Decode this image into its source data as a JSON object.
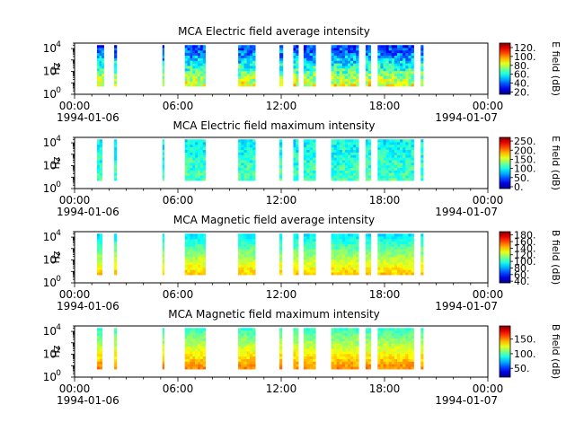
{
  "chart_data": [
    {
      "type": "heatmap",
      "title": "MCA  Electric field average intensity",
      "ylabel": "Hz",
      "colorbar_label": "E field (dB)",
      "colorbar_ticks": [
        20,
        40,
        60,
        80,
        100,
        120
      ],
      "colorbar_tick_labels": [
        "20.",
        "40.",
        "60.",
        "80.",
        "100.",
        "120."
      ],
      "colorbar_range": [
        15,
        130
      ],
      "y_scale": "log",
      "y_range": [
        1,
        30000
      ],
      "y_ticks": [
        {
          "base": "10",
          "exp": "0"
        },
        {
          "base": "10",
          "exp": "2"
        },
        {
          "base": "10",
          "exp": "4"
        }
      ],
      "x_range": [
        0,
        24
      ],
      "x_ticks": [
        "00:00",
        "06:00",
        "12:00",
        "18:00",
        "00:00"
      ],
      "x_date_labels": [
        "1994-01-06",
        "1994-01-07"
      ],
      "freq_range": [
        5,
        20000
      ],
      "segments": [
        [
          1.3,
          1.7
        ],
        [
          2.3,
          2.45
        ],
        [
          5.1,
          5.2
        ],
        [
          6.4,
          7.6
        ],
        [
          9.5,
          10.5
        ],
        [
          11.9,
          12.1
        ],
        [
          12.7,
          13.0
        ],
        [
          13.3,
          14.0
        ],
        [
          14.9,
          16.5
        ],
        [
          16.9,
          17.2
        ],
        [
          17.6,
          19.7
        ],
        [
          20.1,
          20.25
        ]
      ],
      "level_low": 85,
      "level_high": 35,
      "noise": 14
    },
    {
      "type": "heatmap",
      "title": "MCA  Electric field maximum intensity",
      "ylabel": "Hz",
      "colorbar_label": "E field (dB)",
      "colorbar_ticks": [
        0,
        50,
        100,
        150,
        200,
        250
      ],
      "colorbar_tick_labels": [
        "0.",
        "50.",
        "100.",
        "150.",
        "200.",
        "250."
      ],
      "colorbar_range": [
        -10,
        270
      ],
      "y_scale": "log",
      "y_range": [
        1,
        30000
      ],
      "y_ticks": [
        {
          "base": "10",
          "exp": "0"
        },
        {
          "base": "10",
          "exp": "2"
        },
        {
          "base": "10",
          "exp": "4"
        }
      ],
      "x_range": [
        0,
        24
      ],
      "x_ticks": [
        "00:00",
        "06:00",
        "12:00",
        "18:00",
        "00:00"
      ],
      "x_date_labels": [
        "1994-01-06",
        "1994-01-07"
      ],
      "freq_range": [
        5,
        20000
      ],
      "segments": [
        [
          1.3,
          1.6
        ],
        [
          2.3,
          2.45
        ],
        [
          5.1,
          5.2
        ],
        [
          6.4,
          7.6
        ],
        [
          9.5,
          10.5
        ],
        [
          11.9,
          12.05
        ],
        [
          12.7,
          13.0
        ],
        [
          13.3,
          14.0
        ],
        [
          14.9,
          16.5
        ],
        [
          16.9,
          17.2
        ],
        [
          17.6,
          19.7
        ],
        [
          20.1,
          20.25
        ]
      ],
      "level_low": 115,
      "level_high": 95,
      "noise": 22
    },
    {
      "type": "heatmap",
      "title": "MCA  Magnetic field average intensity",
      "ylabel": "Hz",
      "colorbar_label": "B field (dB)",
      "colorbar_ticks": [
        40,
        60,
        80,
        100,
        120,
        140,
        160,
        180
      ],
      "colorbar_tick_labels": [
        "40.",
        "60.",
        "80.",
        "100.",
        "120.",
        "140.",
        "160.",
        "180."
      ],
      "colorbar_range": [
        35,
        190
      ],
      "y_scale": "log",
      "y_range": [
        1,
        30000
      ],
      "y_ticks": [
        {
          "base": "10",
          "exp": "0"
        },
        {
          "base": "10",
          "exp": "2"
        },
        {
          "base": "10",
          "exp": "4"
        }
      ],
      "x_range": [
        0,
        24
      ],
      "x_ticks": [
        "00:00",
        "06:00",
        "12:00",
        "18:00",
        "00:00"
      ],
      "x_date_labels": [
        "1994-01-06",
        "1994-01-07"
      ],
      "freq_range": [
        5,
        20000
      ],
      "segments": [
        [
          1.3,
          1.6
        ],
        [
          2.3,
          2.45
        ],
        [
          5.1,
          5.2
        ],
        [
          6.4,
          7.6
        ],
        [
          9.5,
          10.5
        ],
        [
          11.9,
          12.05
        ],
        [
          12.7,
          13.0
        ],
        [
          13.3,
          14.0
        ],
        [
          14.9,
          16.5
        ],
        [
          16.9,
          17.2
        ],
        [
          17.6,
          19.7
        ],
        [
          20.1,
          20.25
        ]
      ],
      "level_low": 140,
      "level_high": 90,
      "noise": 7
    },
    {
      "type": "heatmap",
      "title": "MCA  Magnetic field maximum intensity",
      "ylabel": "Hz",
      "colorbar_label": "B field (dB)",
      "colorbar_ticks": [
        50,
        100,
        150
      ],
      "colorbar_tick_labels": [
        "50.",
        "100.",
        "150."
      ],
      "colorbar_range": [
        20,
        195
      ],
      "y_scale": "log",
      "y_range": [
        1,
        30000
      ],
      "y_ticks": [
        {
          "base": "10",
          "exp": "0"
        },
        {
          "base": "10",
          "exp": "2"
        },
        {
          "base": "10",
          "exp": "4"
        }
      ],
      "x_range": [
        0,
        24
      ],
      "x_ticks": [
        "00:00",
        "06:00",
        "12:00",
        "18:00",
        "00:00"
      ],
      "x_date_labels": [
        "1994-01-06",
        "1994-01-07"
      ],
      "freq_range": [
        5,
        20000
      ],
      "segments": [
        [
          1.3,
          1.6
        ],
        [
          2.3,
          2.45
        ],
        [
          5.1,
          5.2
        ],
        [
          6.4,
          7.6
        ],
        [
          9.5,
          10.5
        ],
        [
          11.9,
          12.05
        ],
        [
          12.7,
          13.0
        ],
        [
          13.3,
          14.0
        ],
        [
          14.9,
          16.5
        ],
        [
          16.9,
          17.2
        ],
        [
          17.6,
          19.7
        ],
        [
          20.1,
          20.25
        ]
      ],
      "level_low": 150,
      "level_high": 95,
      "noise": 8
    }
  ]
}
